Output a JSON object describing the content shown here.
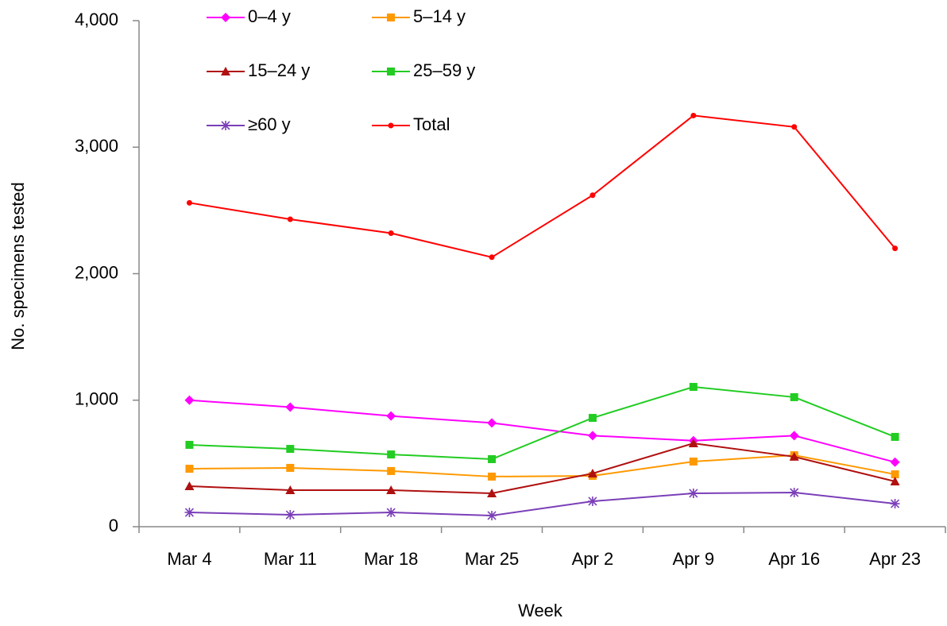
{
  "chart_data": {
    "type": "line",
    "x_label": "Week",
    "y_label": "No. specimens tested",
    "categories": [
      "Mar 4",
      "Mar 11",
      "Mar 18",
      "Mar 25",
      "Apr 2",
      "Apr 9",
      "Apr 16",
      "Apr 23"
    ],
    "ylim": [
      0,
      4000
    ],
    "yticks": [
      0,
      {
        "value": 1000,
        "label": "1,000"
      },
      {
        "value": 2000,
        "label": "2,000"
      },
      {
        "value": 3000,
        "label": "3,000"
      },
      {
        "value": 4000,
        "label": "4,000"
      }
    ],
    "series": [
      {
        "name": "0–4 y",
        "color": "#ff00ff",
        "marker": "diamond",
        "values": [
          1000,
          945,
          875,
          820,
          720,
          680,
          720,
          510
        ]
      },
      {
        "name": "5–14 y",
        "color": "#ff9900",
        "marker": "square",
        "values": [
          458,
          465,
          440,
          396,
          402,
          515,
          565,
          414
        ]
      },
      {
        "name": "15–24 y",
        "color": "#b01010",
        "marker": "triangle",
        "values": [
          320,
          289,
          289,
          264,
          421,
          659,
          553,
          358
        ]
      },
      {
        "name": "25–59 y",
        "color": "#22cc22",
        "marker": "square",
        "values": [
          647,
          615,
          571,
          534,
          860,
          1105,
          1024,
          710
        ]
      },
      {
        "name": "≥60 y",
        "color": "#7b3fb8",
        "marker": "asterisk",
        "values": [
          113,
          94,
          113,
          88,
          201,
          264,
          270,
          182
        ]
      },
      {
        "name": "Total",
        "color": "#ff0000",
        "marker": "circle",
        "values": [
          2560,
          2430,
          2320,
          2130,
          2620,
          3250,
          3160,
          2200
        ]
      }
    ]
  }
}
